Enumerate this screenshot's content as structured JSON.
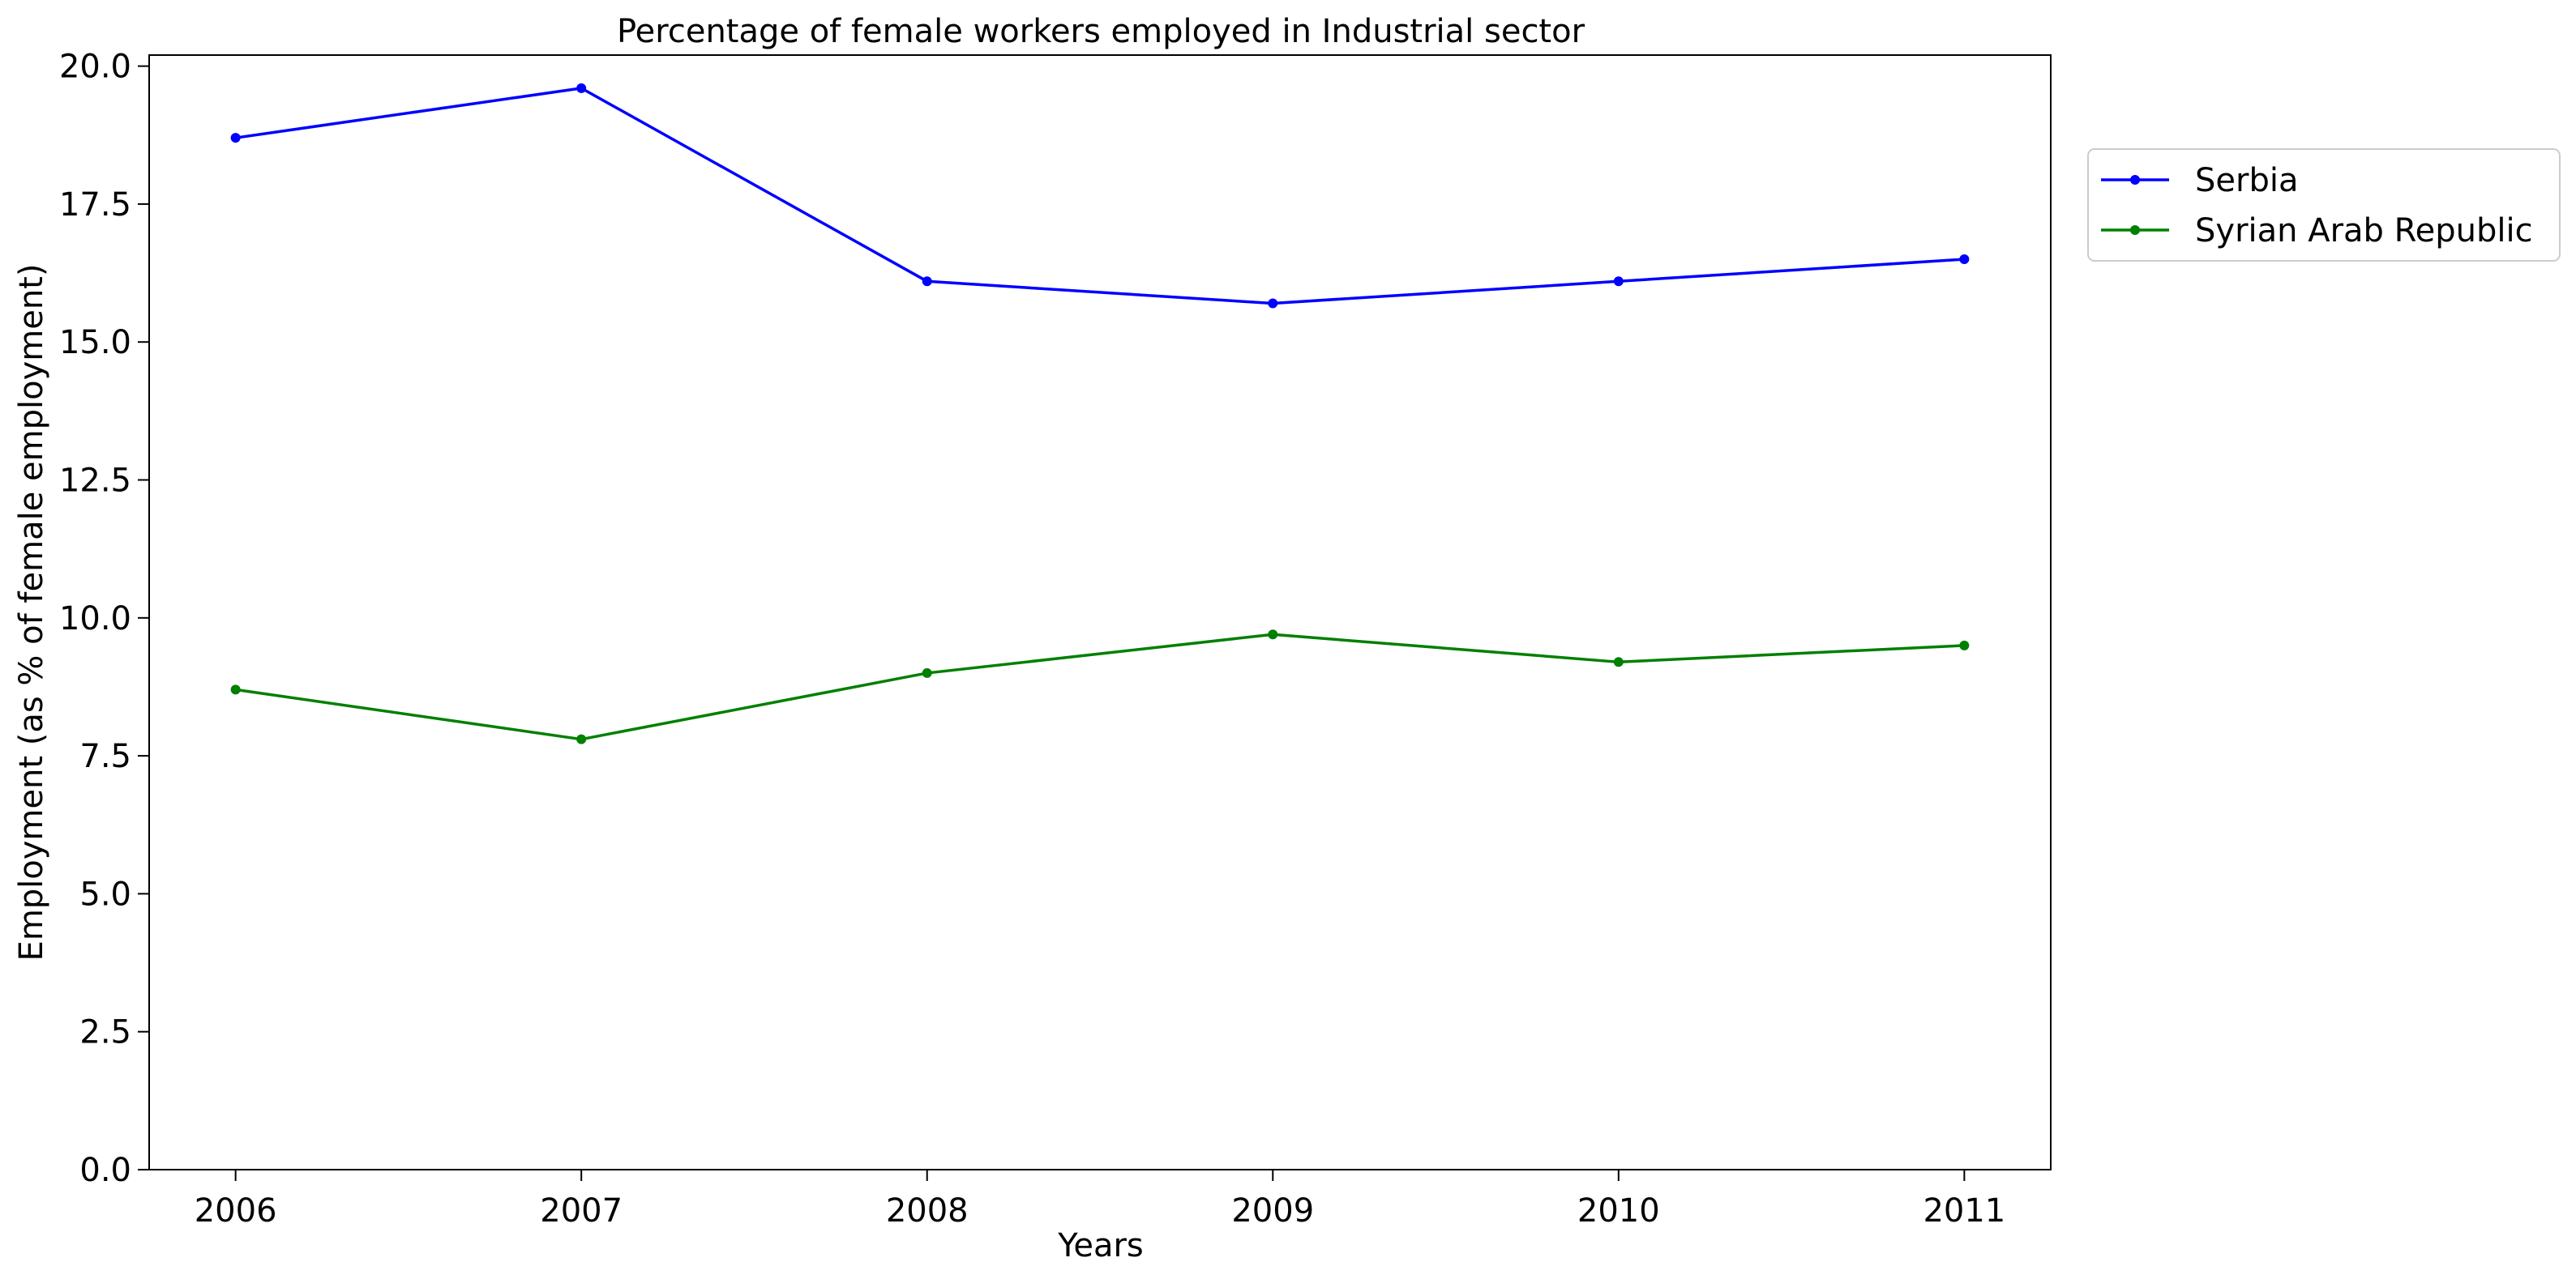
{
  "chart_data": {
    "type": "line",
    "title": "Percentage of female workers employed in Industrial sector",
    "xlabel": "Years",
    "ylabel": "Employment (as % of female employment)",
    "x": [
      2006,
      2007,
      2008,
      2009,
      2010,
      2011
    ],
    "x_tick_labels": [
      "2006",
      "2007",
      "2008",
      "2009",
      "2010",
      "2011"
    ],
    "ylim": [
      0,
      20.2
    ],
    "y_ticks": [
      0.0,
      2.5,
      5.0,
      7.5,
      10.0,
      12.5,
      15.0,
      17.5,
      20.0
    ],
    "y_tick_labels": [
      "0.0",
      "2.5",
      "5.0",
      "7.5",
      "10.0",
      "12.5",
      "15.0",
      "17.5",
      "20.0"
    ],
    "grid": false,
    "legend_position": "outside-right-top",
    "series": [
      {
        "name": "Serbia",
        "color": "#0000ff",
        "marker": "dot",
        "values": [
          18.7,
          19.6,
          16.1,
          15.7,
          16.1,
          16.5
        ]
      },
      {
        "name": "Syrian Arab Republic",
        "color": "#008000",
        "marker": "dot",
        "values": [
          8.7,
          7.8,
          9.0,
          9.7,
          9.2,
          9.5
        ]
      }
    ]
  }
}
